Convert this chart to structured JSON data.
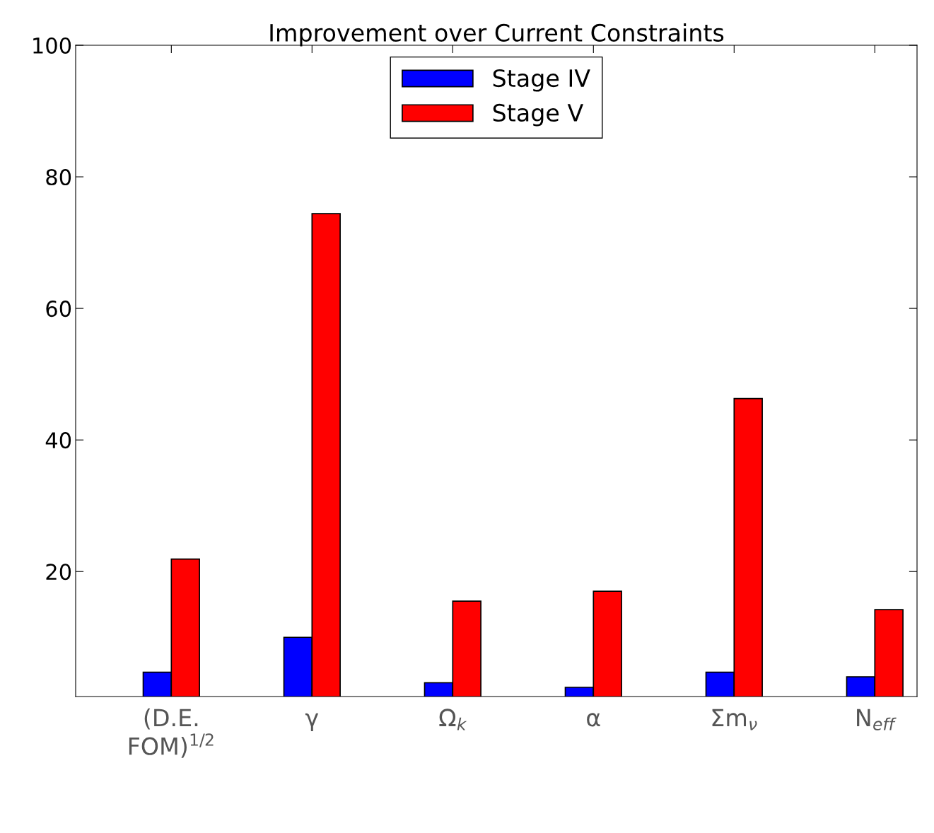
{
  "chart_data": {
    "type": "bar",
    "title": "Improvement over Current Constraints",
    "categories": [
      "(D.E.\nFOM)$^{1/2}$",
      "γ",
      "Ω$_{k}$",
      "α",
      "Σm$_{ν}$",
      "N$_{eff}$"
    ],
    "series": [
      {
        "name": "Stage IV",
        "color": "#0000ff",
        "values": [
          4.7,
          10.0,
          3.1,
          2.4,
          4.7,
          4.0
        ]
      },
      {
        "name": "Stage V",
        "color": "#ff0000",
        "values": [
          21.9,
          74.4,
          15.5,
          17.0,
          46.3,
          14.2
        ]
      }
    ],
    "ylim": [
      1,
      100
    ],
    "yticks": [
      20,
      40,
      60,
      80,
      100
    ],
    "grid": false,
    "legend": "top"
  }
}
